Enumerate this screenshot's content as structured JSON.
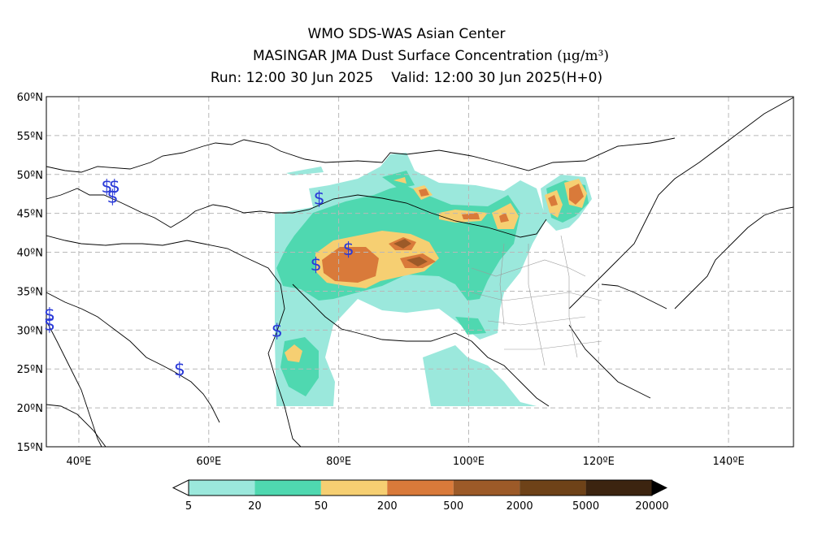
{
  "header": {
    "line1": "WMO SDS-WAS Asian Center",
    "line2_main": "MASINGAR JMA Dust Surface Concentration",
    "line2_unit": "(μg/m³)",
    "run": "Run: 12:00 30 Jun 2025",
    "valid": "Valid: 12:00 30 Jun 2025(H+0)"
  },
  "map": {
    "lat_labels": [
      "60ºN",
      "55ºN",
      "50ºN",
      "45ºN",
      "40ºN",
      "35ºN",
      "30ºN",
      "25ºN",
      "20ºN",
      "15ºN"
    ],
    "lon_labels": [
      "40ºE",
      "60ºE",
      "80ºE",
      "100ºE",
      "120ºE",
      "140ºE"
    ],
    "lat_values": [
      60,
      55,
      50,
      45,
      40,
      35,
      30,
      25,
      20,
      15
    ],
    "lon_values": [
      40,
      60,
      80,
      100,
      120,
      140
    ],
    "extent": {
      "lon_min": 35,
      "lon_max": 150,
      "lat_min": 15,
      "lat_max": 60
    },
    "gridlines": true,
    "station_symbol": "$",
    "stations": [
      {
        "lon": 44.3,
        "lat": 48.5
      },
      {
        "lon": 45.5,
        "lat": 48.5
      },
      {
        "lon": 45.2,
        "lat": 47.2
      },
      {
        "lon": 77.0,
        "lat": 47.0
      },
      {
        "lon": 76.5,
        "lat": 38.5
      },
      {
        "lon": 81.5,
        "lat": 40.5
      },
      {
        "lon": 35.5,
        "lat": 32.0
      },
      {
        "lon": 35.5,
        "lat": 30.8
      },
      {
        "lon": 55.5,
        "lat": 25.0
      },
      {
        "lon": 70.5,
        "lat": 30.0
      }
    ]
  },
  "legend": {
    "labels": [
      "5",
      "20",
      "50",
      "200",
      "500",
      "2000",
      "5000",
      "20000"
    ],
    "colors": [
      "#9be8dc",
      "#4fd8b0",
      "#f6cf72",
      "#d97a3a",
      "#9c5a28",
      "#6e4218",
      "#3c2410"
    ],
    "extend_low": true,
    "extend_high": true
  }
}
